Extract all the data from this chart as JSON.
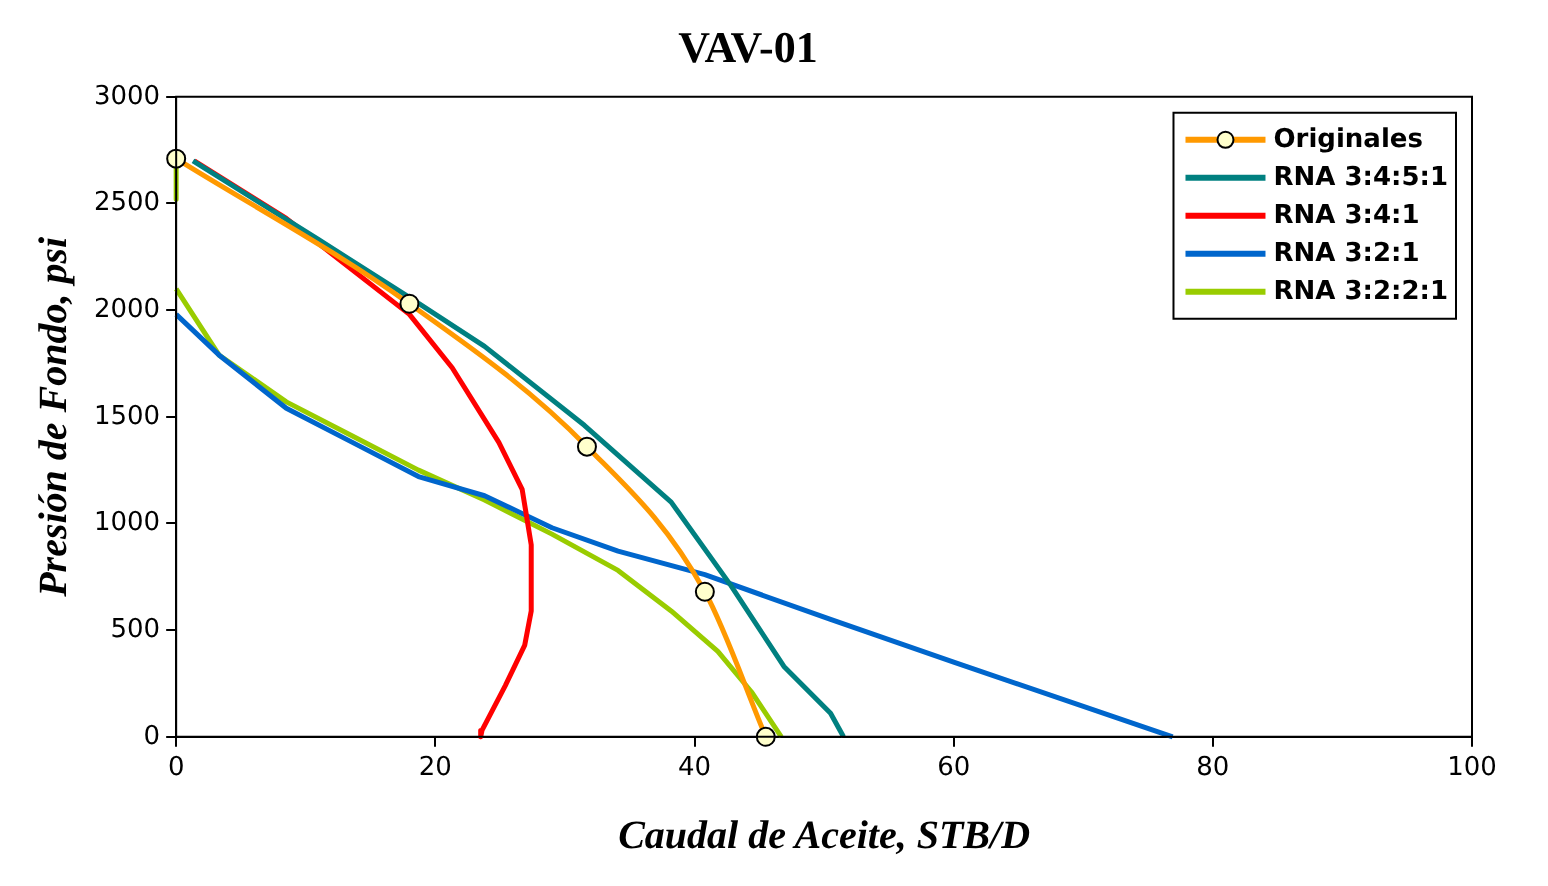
{
  "chart_data": {
    "type": "line",
    "title": "VAV-01",
    "xlabel": "Caudal de Aceite, STB/D",
    "ylabel": "Presión de Fondo, psi",
    "xlim": [
      0,
      100
    ],
    "xticks": [
      0,
      20,
      40,
      60,
      80,
      100
    ],
    "ylim": [
      0,
      3000
    ],
    "yticks": [
      0,
      500,
      1000,
      1500,
      2000,
      2500,
      3000
    ],
    "grid": false,
    "legend": "top right",
    "series": [
      {
        "name": "Originales",
        "color": "#ff9900",
        "marker": "circle",
        "x": [
          0,
          18,
          31.7,
          40.8,
          45.5
        ],
        "values": [
          2710,
          2030,
          1360,
          680,
          0
        ]
      },
      {
        "name": "RNA 3:4:5:1",
        "color": "#008080",
        "x": [
          1.3,
          11,
          18,
          23.8,
          31.5,
          38.2,
          42.8,
          46.9,
          50.5,
          51.5
        ],
        "values": [
          2700,
          2330,
          2060,
          1830,
          1460,
          1100,
          710,
          330,
          110,
          0
        ]
      },
      {
        "name": "RNA 3:4:1",
        "color": "#ff0000",
        "x": [
          1.4,
          8.5,
          18,
          21.3,
          24.9,
          26.7,
          27.4,
          27.4,
          26.9,
          25.4,
          23.6,
          23.5
        ],
        "values": [
          2700,
          2430,
          1980,
          1730,
          1380,
          1160,
          900,
          590,
          430,
          240,
          30,
          0
        ]
      },
      {
        "name": "RNA 3:2:1",
        "color": "#0066cc",
        "x": [
          0,
          3.3,
          8.5,
          13.6,
          18.7,
          23.8,
          29,
          34.1,
          40.8,
          50.5,
          60,
          76.9
        ],
        "values": [
          1980,
          1790,
          1540,
          1380,
          1220,
          1130,
          980,
          870,
          760,
          550,
          350,
          0
        ]
      },
      {
        "name": "RNA 3:2:2:1",
        "color": "#99cc00",
        "x": [
          0,
          0,
          null,
          0,
          3.3,
          8.5,
          13.6,
          18.7,
          23.8,
          29,
          34.1,
          38.2,
          41.8,
          44.4,
          46.7
        ],
        "values": [
          2700,
          2520,
          null,
          2100,
          1790,
          1570,
          1410,
          1250,
          1110,
          950,
          780,
          590,
          400,
          210,
          0
        ]
      }
    ]
  }
}
